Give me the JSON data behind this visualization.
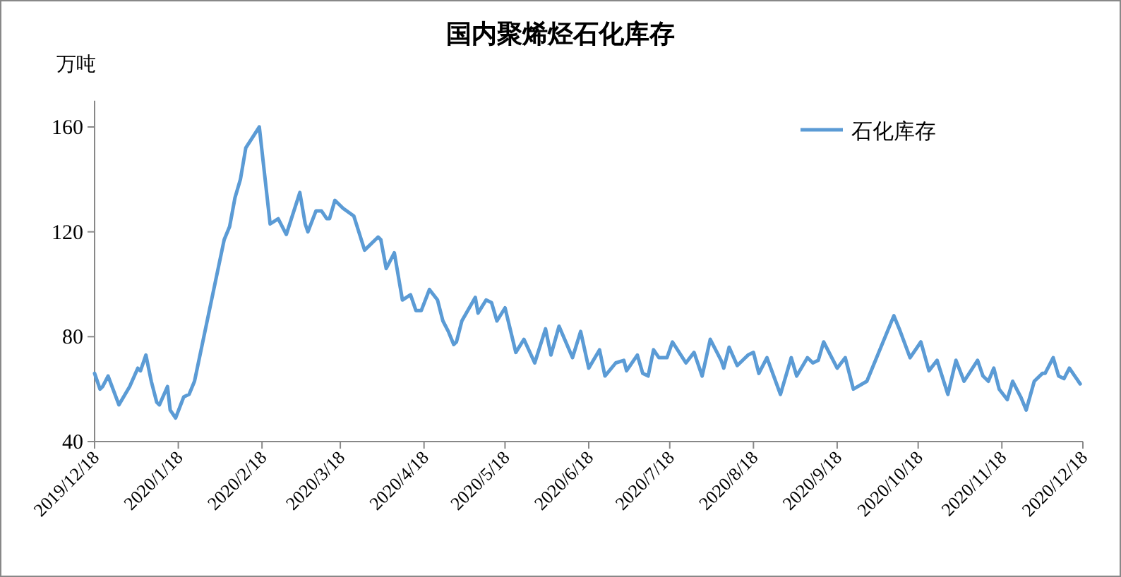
{
  "chart_data": {
    "type": "line",
    "title": "国内聚烯烃石化库存",
    "ylabel": "万吨",
    "legend": "top right",
    "x": [
      "2019-12-18",
      "2019-12-20",
      "2019-12-21",
      "2019-12-23",
      "2019-12-27",
      "2019-12-31",
      "2020-01-03",
      "2020-01-04",
      "2020-01-06",
      "2020-01-08",
      "2020-01-10",
      "2020-01-11",
      "2020-01-14",
      "2020-01-15",
      "2020-01-17",
      "2020-01-20",
      "2020-01-22",
      "2020-01-24",
      "2020-02-04",
      "2020-02-06",
      "2020-02-08",
      "2020-02-10",
      "2020-02-12",
      "2020-02-17",
      "2020-02-21",
      "2020-02-24",
      "2020-02-27",
      "2020-03-03",
      "2020-03-05",
      "2020-03-06",
      "2020-03-09",
      "2020-03-11",
      "2020-03-13",
      "2020-03-14",
      "2020-03-16",
      "2020-03-19",
      "2020-03-23",
      "2020-03-27",
      "2020-04-01",
      "2020-04-02",
      "2020-04-04",
      "2020-04-07",
      "2020-04-10",
      "2020-04-13",
      "2020-04-15",
      "2020-04-17",
      "2020-04-20",
      "2020-04-23",
      "2020-04-25",
      "2020-04-27",
      "2020-04-29",
      "2020-04-30",
      "2020-05-02",
      "2020-05-07",
      "2020-05-08",
      "2020-05-11",
      "2020-05-13",
      "2020-05-15",
      "2020-05-18",
      "2020-05-22",
      "2020-05-25",
      "2020-05-29",
      "2020-06-02",
      "2020-06-04",
      "2020-06-07",
      "2020-06-12",
      "2020-06-15",
      "2020-06-18",
      "2020-06-22",
      "2020-06-24",
      "2020-06-28",
      "2020-07-01",
      "2020-07-02",
      "2020-07-06",
      "2020-07-08",
      "2020-07-10",
      "2020-07-12",
      "2020-07-14",
      "2020-07-17",
      "2020-07-19",
      "2020-07-24",
      "2020-07-27",
      "2020-07-30",
      "2020-08-02",
      "2020-08-06",
      "2020-08-07",
      "2020-08-09",
      "2020-08-12",
      "2020-08-16",
      "2020-08-18",
      "2020-08-20",
      "2020-08-23",
      "2020-08-28",
      "2020-09-01",
      "2020-09-03",
      "2020-09-07",
      "2020-09-09",
      "2020-09-11",
      "2020-09-13",
      "2020-09-18",
      "2020-09-21",
      "2020-09-24",
      "2020-09-29",
      "2020-10-09",
      "2020-10-11",
      "2020-10-15",
      "2020-10-19",
      "2020-10-22",
      "2020-10-25",
      "2020-10-29",
      "2020-11-01",
      "2020-11-04",
      "2020-11-09",
      "2020-11-11",
      "2020-11-13",
      "2020-11-15",
      "2020-11-17",
      "2020-11-20",
      "2020-11-22",
      "2020-11-25",
      "2020-11-27",
      "2020-11-30",
      "2020-12-03",
      "2020-12-04",
      "2020-12-07",
      "2020-12-09",
      "2020-12-11",
      "2020-12-13",
      "2020-12-15",
      "2020-12-17"
    ],
    "series": [
      {
        "name": "石化库存",
        "color": "#5b9bd5",
        "values": [
          66,
          60,
          61,
          65,
          54,
          61,
          68,
          67,
          73,
          63,
          55,
          54,
          61,
          52,
          49,
          57,
          58,
          63,
          117,
          122,
          133,
          140,
          152,
          160,
          123,
          125,
          119,
          135,
          123,
          120,
          128,
          128,
          125,
          125,
          132,
          129,
          126,
          113,
          118,
          117,
          106,
          112,
          94,
          96,
          90,
          90,
          98,
          94,
          86,
          82,
          77,
          78,
          86,
          95,
          89,
          94,
          93,
          86,
          91,
          74,
          79,
          70,
          83,
          73,
          84,
          72,
          82,
          68,
          75,
          65,
          70,
          71,
          67,
          73,
          66,
          65,
          75,
          72,
          72,
          78,
          70,
          74,
          65,
          79,
          71,
          68,
          76,
          69,
          73,
          74,
          66,
          72,
          58,
          72,
          65,
          72,
          70,
          71,
          78,
          68,
          72,
          60,
          63,
          88,
          83,
          72,
          78,
          67,
          71,
          58,
          71,
          63,
          71,
          65,
          63,
          68,
          60,
          56,
          63,
          57,
          52,
          63,
          66,
          66,
          72,
          65,
          64,
          68,
          65,
          62
        ]
      }
    ],
    "xlim": [
      "2019-12-18",
      "2020-12-18"
    ],
    "ylim": [
      40,
      170
    ],
    "yticks": [
      40,
      80,
      120,
      160
    ],
    "xticks": [
      {
        "value": "2019-12-18",
        "label": "2019/12/18"
      },
      {
        "value": "2020-01-18",
        "label": "2020/1/18"
      },
      {
        "value": "2020-02-18",
        "label": "2020/2/18"
      },
      {
        "value": "2020-03-18",
        "label": "2020/3/18"
      },
      {
        "value": "2020-04-18",
        "label": "2020/4/18"
      },
      {
        "value": "2020-05-18",
        "label": "2020/5/18"
      },
      {
        "value": "2020-06-18",
        "label": "2020/6/18"
      },
      {
        "value": "2020-07-18",
        "label": "2020/7/18"
      },
      {
        "value": "2020-08-18",
        "label": "2020/8/18"
      },
      {
        "value": "2020-09-18",
        "label": "2020/9/18"
      },
      {
        "value": "2020-10-18",
        "label": "2020/10/18"
      },
      {
        "value": "2020-11-18",
        "label": "2020/11/18"
      },
      {
        "value": "2020-12-18",
        "label": "2020/12/18"
      }
    ]
  }
}
